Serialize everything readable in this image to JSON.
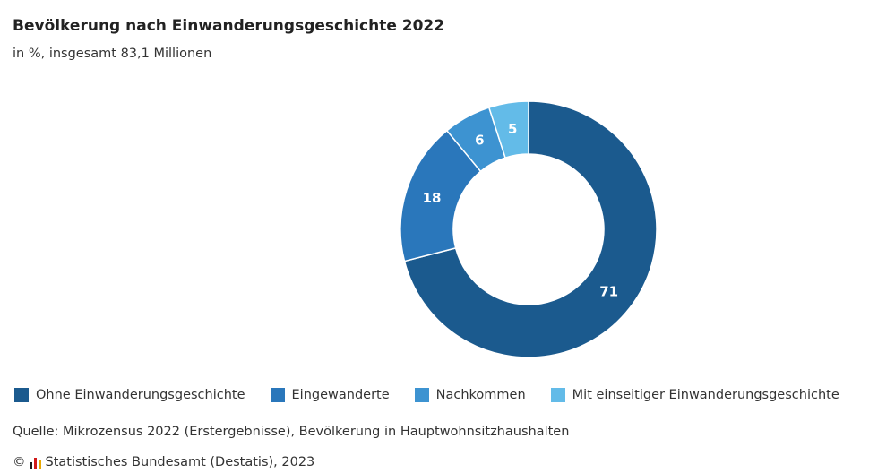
{
  "header": {
    "title": "Bevölkerung nach Einwanderungsgeschichte 2022",
    "subtitle": "in %, insgesamt 83,1 Millionen"
  },
  "footer": {
    "source": "Quelle: Mikrozensus 2022 (Erstergebnisse), Bevölkerung in Hauptwohnsitzhaushalten",
    "copyright_symbol": "©",
    "copyright_text": "Statistisches Bundesamt (Destatis), 2023",
    "logo_icon": "destatis-logo-icon"
  },
  "chart_data": {
    "type": "pie",
    "variant": "donut",
    "title": "Bevölkerung nach Einwanderungsgeschichte 2022",
    "subtitle": "in %, insgesamt 83,1 Millionen",
    "unit": "%",
    "legend_position": "bottom",
    "start_angle": "top",
    "direction": "clockwise",
    "slices": [
      {
        "name": "Ohne Einwanderungsgeschichte",
        "value": 71,
        "color": "#1b5a8e"
      },
      {
        "name": "Eingewanderte",
        "value": 18,
        "color": "#2a77bb"
      },
      {
        "name": "Nachkommen",
        "value": 6,
        "color": "#3d93d1"
      },
      {
        "name": "Mit einseitiger Einwanderungsgeschichte",
        "value": 5,
        "color": "#63bbe8"
      }
    ]
  }
}
